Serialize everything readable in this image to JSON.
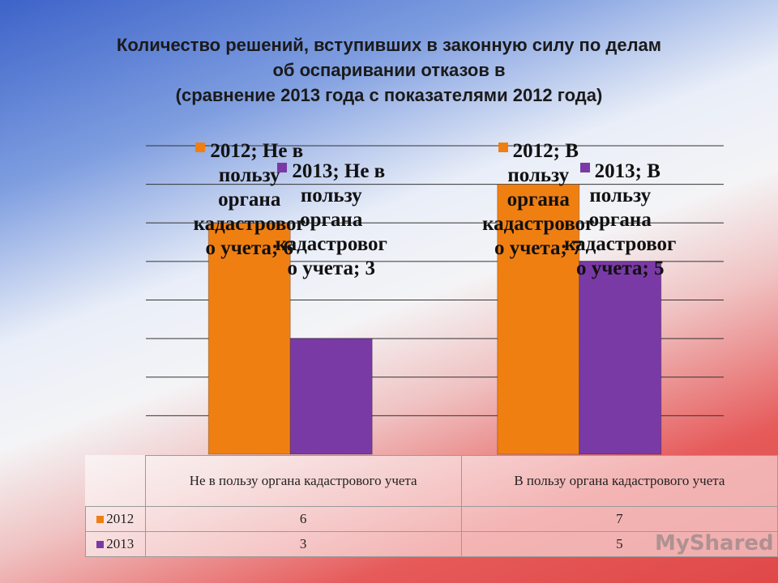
{
  "chart_data": {
    "type": "bar",
    "title": [
      "Количество решений, вступивших в законную силу по делам",
      "об оспаривании отказов в",
      "(сравнение 2013 года с показателями 2012 года)"
    ],
    "categories": [
      "Не в пользу органа кадастрового учета",
      "В пользу органа кадастрового учета"
    ],
    "series": [
      {
        "name": "2012",
        "color": "#f07f12",
        "values": [
          6,
          7
        ],
        "value_labels": [
          "2012; Не в пользу органа кадастрового учета; 6",
          "2012; В пользу органа кадастрового учета; 7"
        ]
      },
      {
        "name": "2013",
        "color": "#7a3aa6",
        "values": [
          3,
          5
        ],
        "value_labels": [
          "2013; Не в пользу органа кадастрового учета; 3",
          "2013; В пользу органа кадастрового учета; 5"
        ]
      }
    ],
    "ylim": [
      0,
      8
    ],
    "yticks": [
      1,
      2,
      3,
      4,
      5,
      6,
      7,
      8
    ],
    "grid": true,
    "data_table": true
  },
  "watermark": "MyShared"
}
